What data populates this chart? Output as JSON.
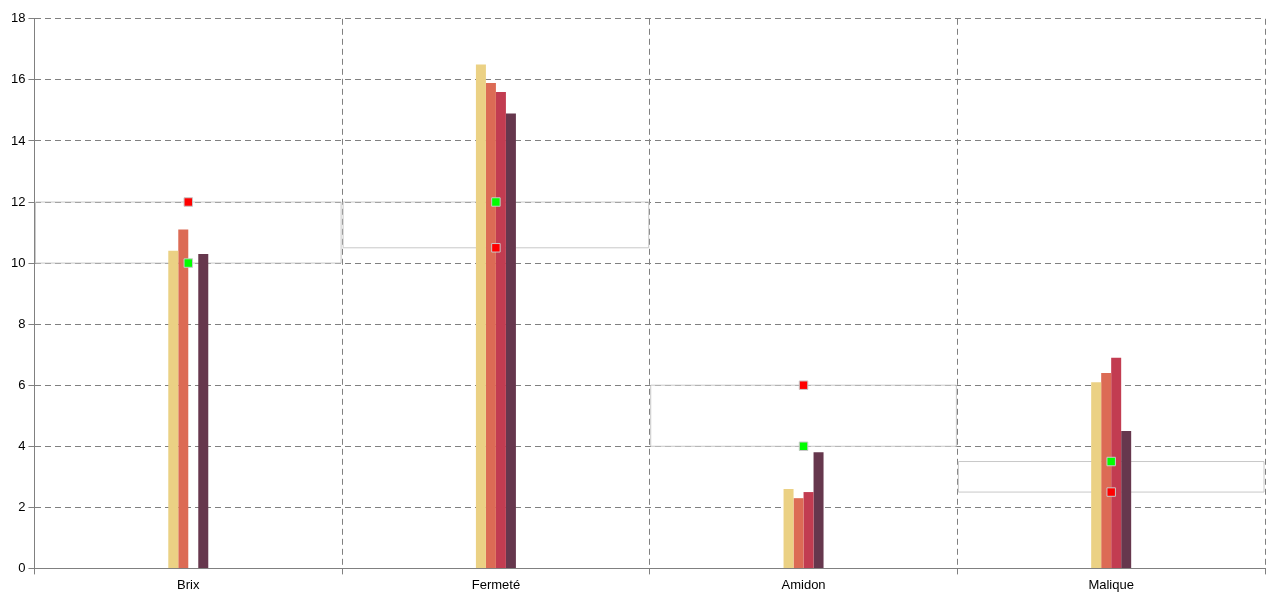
{
  "chart_data": {
    "type": "bar",
    "categories": [
      "Brix",
      "Fermeté",
      "Amidon",
      "Malique"
    ],
    "series": [
      {
        "color": "#ebd184",
        "values": [
          10.4,
          16.5,
          2.6,
          6.1
        ]
      },
      {
        "color": "#dc6b55",
        "values": [
          11.1,
          15.9,
          2.3,
          6.4
        ]
      },
      {
        "color": "#c23c51",
        "values": [
          0,
          15.6,
          2.5,
          6.9
        ]
      },
      {
        "color": "#66374d",
        "values": [
          10.3,
          14.9,
          3.8,
          4.5
        ]
      },
      {
        "type": "scatter",
        "color": "#ff0000",
        "x": [
          "Brix",
          "Fermeté",
          "Amidon",
          "Malique"
        ],
        "values": [
          12,
          10.5,
          6,
          2.5
        ]
      },
      {
        "type": "scatter",
        "color": "#00ff00",
        "x": [
          "Brix",
          "Fermeté",
          "Amidon",
          "Malique"
        ],
        "values": [
          10,
          12,
          4,
          3.5
        ]
      }
    ],
    "ylim": [
      0,
      18
    ],
    "yticks": [
      0,
      2,
      4,
      6,
      8,
      10,
      12,
      14,
      16,
      18
    ],
    "grid": true,
    "legend": false,
    "marker": "square"
  }
}
